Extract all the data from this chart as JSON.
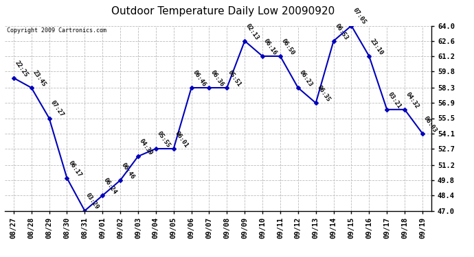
{
  "title": "Outdoor Temperature Daily Low 20090920",
  "copyright": "Copyright 2009 Cartronics.com",
  "dates": [
    "08/27",
    "08/28",
    "08/29",
    "08/30",
    "08/31",
    "09/01",
    "09/02",
    "09/03",
    "09/04",
    "09/05",
    "09/06",
    "09/07",
    "09/08",
    "09/09",
    "09/10",
    "09/11",
    "09/12",
    "09/13",
    "09/14",
    "09/15",
    "09/16",
    "09/17",
    "09/18",
    "09/19"
  ],
  "values": [
    59.2,
    58.3,
    55.5,
    50.0,
    47.0,
    48.4,
    49.8,
    52.0,
    52.7,
    52.7,
    58.3,
    58.3,
    58.3,
    62.6,
    61.2,
    61.2,
    58.3,
    56.9,
    62.6,
    64.0,
    61.2,
    56.3,
    56.3,
    54.1
  ],
  "times": [
    "22:25",
    "23:45",
    "07:27",
    "06:17",
    "03:29",
    "06:24",
    "06:46",
    "04:39",
    "05:55",
    "06:01",
    "06:46",
    "06:36",
    "05:51",
    "02:13",
    "06:16",
    "06:50",
    "06:23",
    "06:35",
    "06:53",
    "07:05",
    "23:10",
    "03:21",
    "04:32",
    "06:03"
  ],
  "ylim": [
    47.0,
    64.0
  ],
  "yticks": [
    47.0,
    48.4,
    49.8,
    51.2,
    52.7,
    54.1,
    55.5,
    56.9,
    58.3,
    59.8,
    61.2,
    62.6,
    64.0
  ],
  "line_color": "#0000bb",
  "marker_color": "#0000bb",
  "bg_color": "#ffffff",
  "grid_color": "#bbbbbb",
  "title_fontsize": 11,
  "copyright_fontsize": 6,
  "label_fontsize": 6.5,
  "tick_fontsize": 7.5
}
